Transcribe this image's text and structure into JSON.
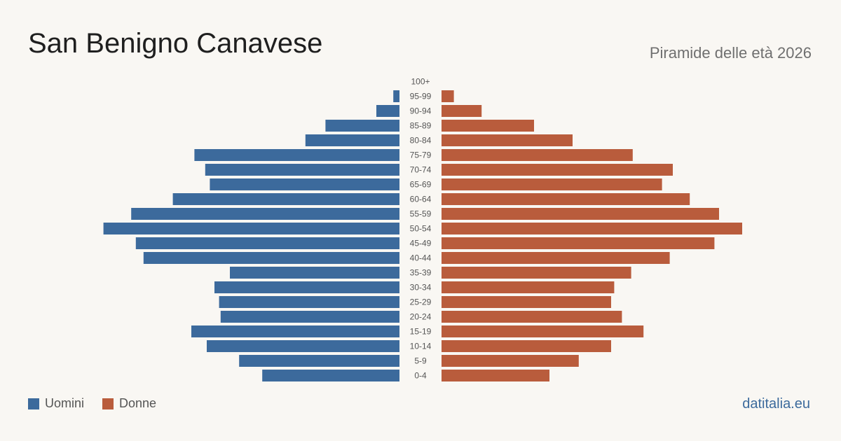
{
  "header": {
    "title": "San Benigno Canavese",
    "subtitle": "Piramide delle età 2026"
  },
  "legend": {
    "men_label": "Uomini",
    "women_label": "Donne"
  },
  "brand": "datitalia.eu",
  "colors": {
    "men": "#3c6a9c",
    "women": "#b95c3c",
    "background": "#f9f7f3"
  },
  "chart_data": {
    "type": "bar",
    "orientation": "horizontal-pyramid",
    "categories": [
      "100+",
      "95-99",
      "90-94",
      "85-89",
      "80-84",
      "75-79",
      "70-74",
      "65-69",
      "60-64",
      "55-59",
      "50-54",
      "45-49",
      "40-44",
      "35-39",
      "30-34",
      "25-29",
      "20-24",
      "15-19",
      "10-14",
      "5-9",
      "0-4"
    ],
    "series": [
      {
        "name": "Uomini",
        "values": [
          0,
          4,
          15,
          48,
          61,
          133,
          126,
          123,
          147,
          174,
          192,
          171,
          166,
          110,
          120,
          117,
          116,
          135,
          125,
          104,
          89
        ]
      },
      {
        "name": "Donne",
        "values": [
          0,
          8,
          26,
          60,
          85,
          124,
          150,
          143,
          161,
          180,
          195,
          177,
          148,
          123,
          112,
          110,
          117,
          131,
          110,
          89,
          70
        ]
      }
    ]
  }
}
